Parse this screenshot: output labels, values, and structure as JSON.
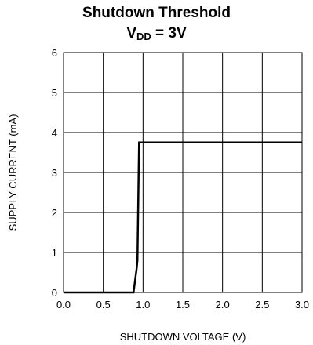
{
  "chart_data": {
    "type": "line",
    "title_line1": "Shutdown Threshold",
    "title_line2": {
      "base": "V",
      "subscript": "DD",
      "rest": " = 3V"
    },
    "xlabel": "SHUTDOWN VOLTAGE (V)",
    "ylabel": "SUPPLY CURRENT (mA)",
    "xlim": [
      0,
      3.0
    ],
    "ylim": [
      0,
      6
    ],
    "xticks": [
      "0.0",
      "0.5",
      "1.0",
      "1.5",
      "2.0",
      "2.5",
      "3.0"
    ],
    "yticks": [
      "0",
      "1",
      "2",
      "3",
      "4",
      "5",
      "6"
    ],
    "grid": true,
    "series": [
      {
        "x": [
          0.0,
          0.88,
          0.92,
          0.93,
          0.95,
          3.0
        ],
        "y": [
          0.0,
          0.0,
          0.6,
          0.8,
          3.75,
          3.75
        ]
      }
    ],
    "line_color": "#000000"
  }
}
